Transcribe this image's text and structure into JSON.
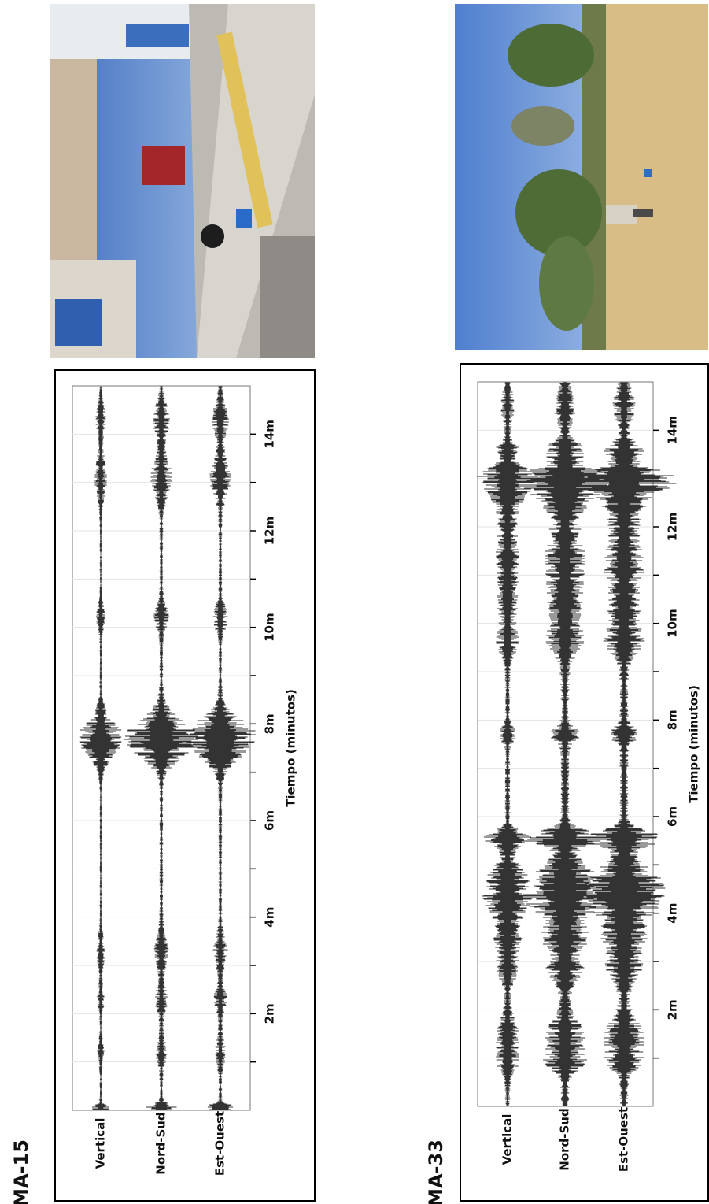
{
  "panels": [
    {
      "label": "MA-15",
      "traces": [
        "Vertical",
        "Nord-Sud",
        "Est-Ouest"
      ],
      "ticks": [
        "2m",
        "4m",
        "6m",
        "8m",
        "10m",
        "12m",
        "14m"
      ],
      "axis_label": "Tiempo (minutos)"
    },
    {
      "label": "MA-33",
      "traces": [
        "Vertical",
        "Nord-Sud",
        "Est-Ouest"
      ],
      "ticks": [
        "2m",
        "4m",
        "6m",
        "8m",
        "10m",
        "12m",
        "14m"
      ],
      "axis_label": "Tiempo (minutos)"
    }
  ]
}
